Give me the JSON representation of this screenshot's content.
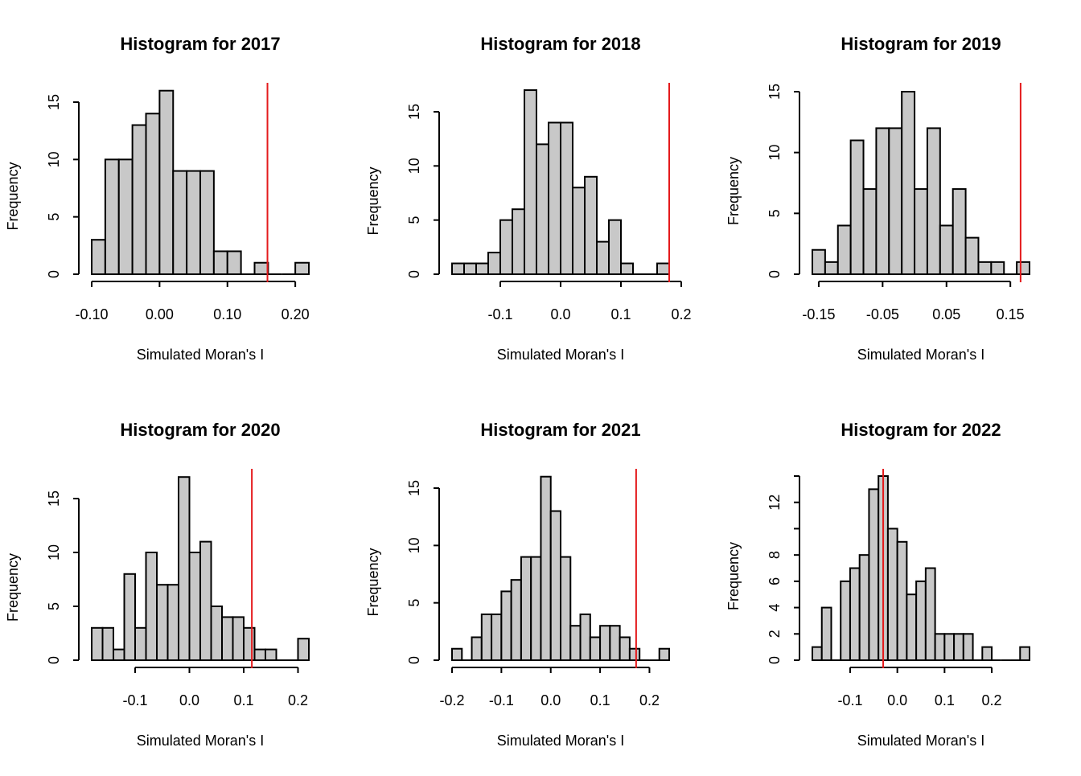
{
  "colors": {
    "bar_fill": "#c8c8c8",
    "bar_stroke": "#000000",
    "observed_line": "#e41a1c",
    "axis": "#000000"
  },
  "chart_data": [
    {
      "type": "histogram",
      "title": "Histogram for 2017",
      "xlabel": "Simulated Moran's I",
      "ylabel": "Frequency",
      "bins": {
        "start": -0.1,
        "width": 0.02
      },
      "counts": [
        3,
        10,
        10,
        13,
        14,
        16,
        9,
        9,
        9,
        2,
        2,
        0,
        1,
        0,
        0,
        1
      ],
      "observed": 0.159,
      "xticks": [
        -0.1,
        0.0,
        0.1,
        0.2
      ],
      "xtick_labels": [
        "-0.10",
        "0.00",
        "0.10",
        "0.20"
      ],
      "yticks": [
        0,
        5,
        10,
        15
      ],
      "yaxis_max": 15
    },
    {
      "type": "histogram",
      "title": "Histogram for 2018",
      "xlabel": "Simulated Moran's I",
      "ylabel": "Frequency",
      "bins": {
        "start": -0.18,
        "width": 0.02
      },
      "counts": [
        1,
        1,
        1,
        2,
        5,
        6,
        17,
        12,
        14,
        14,
        8,
        9,
        3,
        5,
        1,
        0,
        0,
        1
      ],
      "observed": 0.18,
      "xticks": [
        -0.1,
        0.0,
        0.1,
        0.2
      ],
      "xtick_labels": [
        "-0.1",
        "0.0",
        "0.1",
        "0.2"
      ],
      "yticks": [
        0,
        5,
        10,
        15
      ],
      "yaxis_max": 15
    },
    {
      "type": "histogram",
      "title": "Histogram for 2019",
      "xlabel": "Simulated Moran's I",
      "ylabel": "Frequency",
      "bins": {
        "start": -0.16,
        "width": 0.02
      },
      "counts": [
        2,
        1,
        4,
        11,
        7,
        12,
        12,
        15,
        7,
        12,
        4,
        7,
        3,
        1,
        1,
        0,
        1
      ],
      "observed": 0.166,
      "xticks": [
        -0.15,
        -0.05,
        0.05,
        0.15
      ],
      "xtick_labels": [
        "-0.15",
        "-0.05",
        "0.05",
        "0.15"
      ],
      "yticks": [
        0,
        5,
        10,
        15
      ],
      "yaxis_max": 15
    },
    {
      "type": "histogram",
      "title": "Histogram for 2020",
      "xlabel": "Simulated Moran's I",
      "ylabel": "Frequency",
      "bins": {
        "start": -0.18,
        "width": 0.02
      },
      "counts": [
        3,
        3,
        1,
        8,
        3,
        10,
        7,
        7,
        17,
        10,
        11,
        5,
        4,
        4,
        3,
        1,
        1,
        0,
        0,
        2
      ],
      "observed": 0.115,
      "xticks": [
        -0.1,
        0.0,
        0.1,
        0.2
      ],
      "xtick_labels": [
        "-0.1",
        "0.0",
        "0.1",
        "0.2"
      ],
      "yticks": [
        0,
        5,
        10,
        15
      ],
      "yaxis_max": 15
    },
    {
      "type": "histogram",
      "title": "Histogram for 2021",
      "xlabel": "Simulated Moran's I",
      "ylabel": "Frequency",
      "bins": {
        "start": -0.2,
        "width": 0.02
      },
      "counts": [
        1,
        0,
        2,
        4,
        4,
        6,
        7,
        9,
        9,
        16,
        13,
        9,
        3,
        4,
        2,
        3,
        3,
        2,
        1,
        0,
        0,
        1
      ],
      "observed": 0.173,
      "xticks": [
        -0.2,
        -0.1,
        0.0,
        0.1,
        0.2
      ],
      "xtick_labels": [
        "-0.2",
        "-0.1",
        "0.0",
        "0.1",
        "0.2"
      ],
      "yticks": [
        0,
        5,
        10,
        15
      ],
      "yaxis_max": 15
    },
    {
      "type": "histogram",
      "title": "Histogram for 2022",
      "xlabel": "Simulated Moran's I",
      "ylabel": "Frequency",
      "bins": {
        "start": -0.18,
        "width": 0.02
      },
      "counts": [
        1,
        4,
        0,
        6,
        7,
        8,
        13,
        14,
        10,
        9,
        5,
        6,
        7,
        2,
        2,
        2,
        2,
        0,
        1,
        0,
        0,
        0,
        1
      ],
      "observed": -0.03,
      "xticks": [
        -0.1,
        0.0,
        0.1,
        0.2
      ],
      "xtick_labels": [
        "-0.1",
        "0.0",
        "0.1",
        "0.2"
      ],
      "yticks": [
        0,
        2,
        4,
        6,
        8,
        10,
        12,
        14
      ],
      "ytick_labels": [
        "0",
        "2",
        "4",
        "6",
        "8",
        "",
        "12",
        ""
      ],
      "yaxis_max": 14
    }
  ]
}
